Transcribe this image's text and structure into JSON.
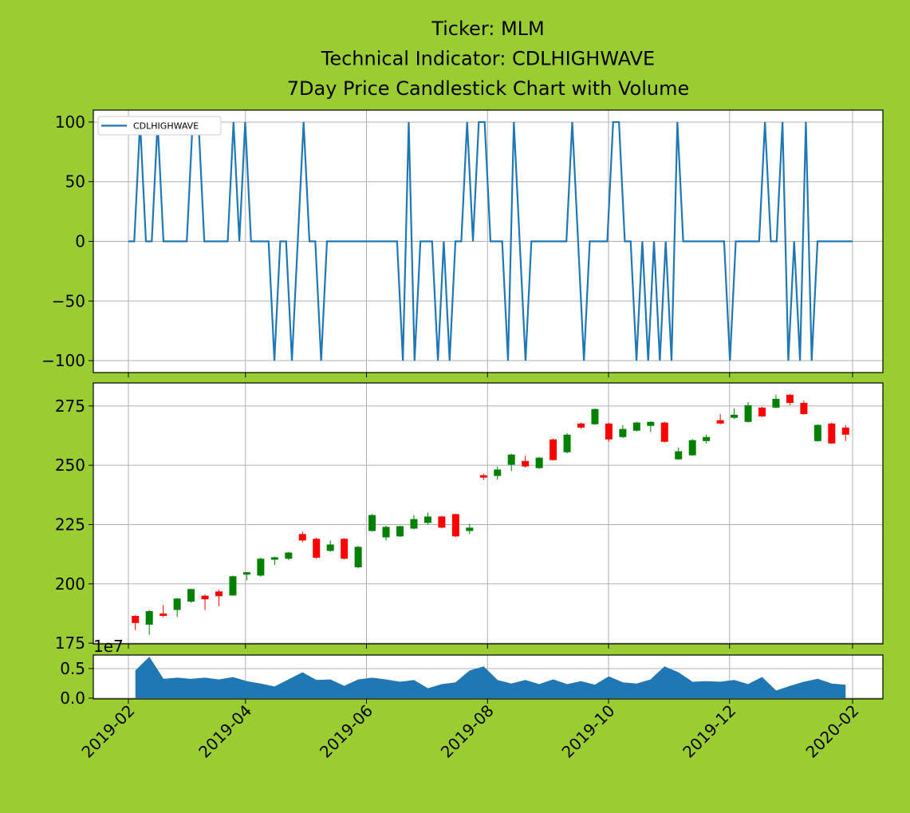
{
  "chart_data": [
    {
      "type": "line",
      "title": [
        "Ticker: MLM",
        "Technical Indicator: CDLHIGHWAVE",
        "7Day Price Candlestick Chart with Volume"
      ],
      "series": [
        {
          "name": "CDLHIGHWAVE",
          "color": "#1f77b4",
          "values": [
            0,
            0,
            100,
            0,
            0,
            100,
            0,
            0,
            0,
            0,
            0,
            100,
            100,
            0,
            0,
            0,
            0,
            0,
            100,
            0,
            100,
            0,
            0,
            0,
            0,
            -100,
            0,
            0,
            -100,
            0,
            100,
            0,
            0,
            -100,
            0,
            0,
            0,
            0,
            0,
            0,
            0,
            0,
            0,
            0,
            0,
            0,
            0,
            -100,
            100,
            -100,
            0,
            0,
            0,
            -100,
            0,
            -100,
            0,
            0,
            100,
            0,
            100,
            100,
            0,
            0,
            0,
            -100,
            100,
            0,
            -100,
            0,
            0,
            0,
            0,
            0,
            0,
            0,
            100,
            0,
            -100,
            0,
            0,
            0,
            0,
            100,
            100,
            0,
            0,
            -100,
            0,
            -100,
            0,
            -100,
            0,
            -100,
            100,
            0,
            0,
            0,
            0,
            0,
            0,
            0,
            0,
            -100,
            0,
            0,
            0,
            0,
            0,
            100,
            0,
            0,
            100,
            -100,
            0,
            -100,
            100,
            -100,
            0,
            0,
            0,
            0,
            0,
            0,
            0
          ]
        }
      ],
      "ylim": [
        -110,
        110
      ],
      "yticks": [
        {
          "value": -100,
          "label": "−100"
        },
        {
          "value": -50,
          "label": "−50"
        },
        0,
        50,
        100
      ],
      "grid": true,
      "legend": "upper left"
    },
    {
      "type": "candlestick",
      "open": [
        186.5,
        182.8,
        187.5,
        189,
        192.5,
        195,
        196.8,
        195.1,
        203.9,
        203.5,
        210.2,
        210.6,
        221,
        219,
        213.9,
        219,
        207,
        222.3,
        219.6,
        220,
        223.3,
        225.7,
        228.4,
        229.4,
        222.3,
        245.8,
        245.5,
        250.2,
        251.8,
        248.8,
        260.9,
        255.5,
        267.6,
        267.3,
        267.6,
        261.9,
        264.6,
        266.6,
        268,
        252.5,
        254.2,
        260.2,
        269,
        270,
        268.3,
        274.3,
        274.3,
        279.7,
        276.3,
        260.2,
        267.6,
        265.9
      ],
      "high": [
        186.8,
        189,
        191,
        194,
        198,
        195.5,
        197.5,
        203.5,
        205,
        211,
        211.5,
        213.5,
        222,
        219.5,
        218.3,
        219.3,
        216,
        229.5,
        224.5,
        224.5,
        229,
        230,
        228.7,
        229.6,
        225.3,
        246.5,
        249.5,
        254.8,
        254,
        253.5,
        261.2,
        263.5,
        268,
        274,
        268,
        266.9,
        268.3,
        268.6,
        268.3,
        257.5,
        261,
        262.9,
        271.6,
        274,
        276.7,
        274.6,
        279.7,
        280,
        277.3,
        267.3,
        267.9,
        266.9
      ],
      "low": [
        180.5,
        178.5,
        186,
        186,
        192,
        189,
        190.5,
        195,
        201.5,
        203,
        208,
        210,
        217.5,
        210.5,
        213.5,
        210.3,
        206.5,
        222,
        218.3,
        219.8,
        223,
        225,
        223.4,
        219.8,
        221,
        243.8,
        244,
        247.5,
        249,
        248.5,
        252,
        255,
        265.5,
        267,
        260,
        261.5,
        264.3,
        264,
        259.6,
        252.3,
        254,
        259.2,
        267.3,
        269.5,
        268,
        270.3,
        274,
        275.3,
        271.3,
        260,
        259,
        260.2
      ],
      "close": [
        183.5,
        188.5,
        186.5,
        193.8,
        197.8,
        193.5,
        194.8,
        203.2,
        204.9,
        210.6,
        211.2,
        213.2,
        218.3,
        211,
        216.6,
        210.6,
        215.6,
        229,
        224,
        224.3,
        227.3,
        228.4,
        223.7,
        220,
        223.7,
        244.8,
        248.2,
        254.5,
        249.5,
        253.2,
        252.2,
        262.9,
        265.9,
        273.7,
        260.9,
        265.3,
        268,
        268.3,
        259.9,
        255.9,
        260.6,
        261.9,
        267.6,
        271.3,
        275.3,
        270.6,
        278,
        276.3,
        271.6,
        267,
        259.2,
        262.9
      ],
      "up_color": "green",
      "down_color": "red",
      "ylim": [
        174.7,
        284.7
      ],
      "yticks": [
        175,
        200,
        225,
        250,
        275
      ],
      "grid": true
    },
    {
      "type": "area",
      "color": "#1f77b4",
      "values": [
        0.46,
        0.69,
        0.32,
        0.34,
        0.32,
        0.34,
        0.31,
        0.35,
        0.28,
        0.24,
        0.19,
        0.31,
        0.43,
        0.3,
        0.31,
        0.2,
        0.31,
        0.34,
        0.31,
        0.27,
        0.3,
        0.16,
        0.23,
        0.26,
        0.46,
        0.53,
        0.3,
        0.24,
        0.3,
        0.23,
        0.31,
        0.23,
        0.28,
        0.22,
        0.36,
        0.26,
        0.24,
        0.31,
        0.53,
        0.43,
        0.27,
        0.28,
        0.27,
        0.3,
        0.23,
        0.35,
        0.12,
        0.2,
        0.27,
        0.32,
        0.24,
        0.22
      ],
      "ylim": [
        -0.0135,
        0.73
      ],
      "yticks": [
        {
          "value": 0,
          "label": "0.0"
        },
        0.5
      ],
      "y_offset_label": "1e7",
      "xticks": [
        "2019-02",
        "2019-04",
        "2019-06",
        "2019-08",
        "2019-10",
        "2019-12",
        "2020-02"
      ],
      "grid": true
    }
  ]
}
